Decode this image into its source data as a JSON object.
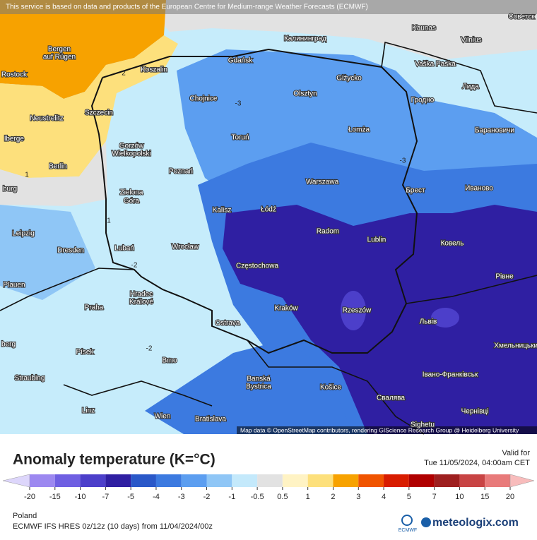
{
  "header": {
    "notice": "This service is based on data and products of the European Centre for Medium-range Weather Forecasts (ECMWF)"
  },
  "map": {
    "cities": [
      "Советск",
      "Bergen",
      "auf Rügen",
      "Калининград",
      "Kaunas",
      "Vilnius",
      "Rostock",
      "Koszalin",
      "Gdańsk",
      "Giżycko",
      "Vaška Paska",
      "Лида",
      "Olsztyn",
      "Chojnice",
      "Гродно",
      "Neustrelitz",
      "Szczecin",
      "Łomża",
      "Барановичи",
      "Gorzów",
      "Wielkopolski",
      "Toruń",
      "lberge",
      "Berlin",
      "Poznań",
      "Warszawa",
      "Брест",
      "Иваново",
      "burg",
      "Zielona",
      "Góra",
      "Kalisz",
      "Łódź",
      "Leipzig",
      "Radom",
      "Lublin",
      "Ковель",
      "Dresden",
      "Lubań",
      "Wrocław",
      "Częstochowa",
      "Рівне",
      "Plauen",
      "Hradec",
      "Králové",
      "Kraków",
      "Rzeszów",
      "Praha",
      "Львів",
      "Ostrava",
      "Хмельницький",
      "berg",
      "Písek",
      "Brno",
      "Straubing",
      "Banská",
      "Bystrica",
      "Košice",
      "Івано-Франківськ",
      "Свалява",
      "Linz",
      "Wien",
      "Bratislava",
      "Чернівці",
      "Sighetu"
    ],
    "contour_labels": [
      2,
      -3,
      1,
      -3,
      1,
      -2,
      -2
    ],
    "attribution": "Map data © OpenStreetMap contributors, rendering GIScience Research Group @ Heidelberg University"
  },
  "legend": {
    "title": "Anomaly temperature (K=°C)",
    "valid_label": "Valid for",
    "valid_time": "Tue 11/05/2024, 04:00am CET",
    "ticks": [
      -20,
      -15,
      -10,
      -7,
      -5,
      -4,
      -3,
      -2,
      -1,
      -0.5,
      0.5,
      1,
      2,
      3,
      4,
      5,
      7,
      10,
      15,
      20
    ],
    "colors": [
      "#ddd6fb",
      "#9c88f0",
      "#6f5fe2",
      "#4c3fca",
      "#2f1fa2",
      "#2a58c8",
      "#3c7ae0",
      "#5c9ef0",
      "#8fc6f6",
      "#c4e9fb",
      "#e2e2e2",
      "#fff3c4",
      "#fde07c",
      "#f7a200",
      "#f05400",
      "#d81c00",
      "#b00000",
      "#9e1f1f",
      "#c84444",
      "#e87a7a",
      "#f8bcbc"
    ]
  },
  "footer": {
    "region": "Poland",
    "model": "ECMWF IFS HRES 0z/12z (10 days)  from  11/04/2024/00z",
    "ecmwf": "ECMWF",
    "brand": "meteologix.com"
  }
}
